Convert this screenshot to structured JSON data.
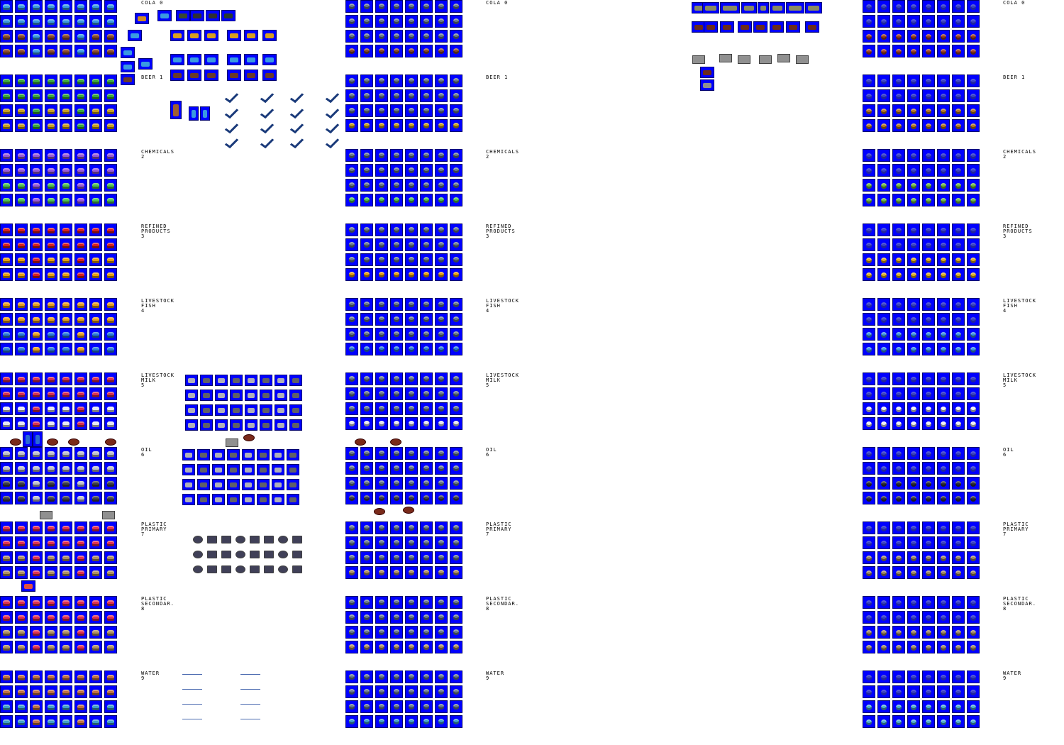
{
  "cargo_types": [
    {
      "name": "Cola",
      "lines": [
        "COLA 0"
      ],
      "color": "#3a9ae0",
      "color_b": "#8a4a2a",
      "color_c": "#a04020"
    },
    {
      "name": "Beer",
      "lines": [
        "BEER 1"
      ],
      "color": "#3aa83a",
      "color_b": "#c8a020",
      "color_c": "#b87820"
    },
    {
      "name": "Chemicals",
      "lines": [
        "CHEMICALS",
        "2"
      ],
      "color": "#9a5ad8",
      "color_b": "#50c050",
      "color_c": "#70b840"
    },
    {
      "name": "Refined Products",
      "lines": [
        "REFINED",
        "PRODUCTS",
        "3"
      ],
      "color": "#d82020",
      "color_b": "#e8a010",
      "color_c": "#e0b020"
    },
    {
      "name": "Livestock Fish",
      "lines": [
        "LIVESTOCK",
        "FISH",
        "4"
      ],
      "color": "#e8a020",
      "color_b": "#2a7ad8",
      "color_c": "#3a90e0"
    },
    {
      "name": "Livestock Milk",
      "lines": [
        "LIVESTOCK",
        "MILK",
        "5"
      ],
      "color": "#d83050",
      "color_b": "#e8e8f0",
      "color_c": "#f0f0f0"
    },
    {
      "name": "Oil",
      "lines": [
        "OIL",
        "6"
      ],
      "color": "#c0c0c8",
      "color_b": "#404048",
      "color_c": "#303038"
    },
    {
      "name": "Plastic Primary",
      "lines": [
        "PLASTIC",
        "PRIMARY",
        "7"
      ],
      "color": "#e03050",
      "color_b": "#b09060",
      "color_c": "#a08860"
    },
    {
      "name": "Plastic Secondary",
      "lines": [
        "PLASTIC",
        "SECONDAR.",
        "8"
      ],
      "color": "#e03050",
      "color_b": "#b09060",
      "color_c": "#a08860"
    },
    {
      "name": "Water",
      "lines": [
        "WATER",
        "9"
      ],
      "color": "#c07040",
      "color_b": "#40a0c8",
      "color_c": "#50b0d0"
    }
  ]
}
